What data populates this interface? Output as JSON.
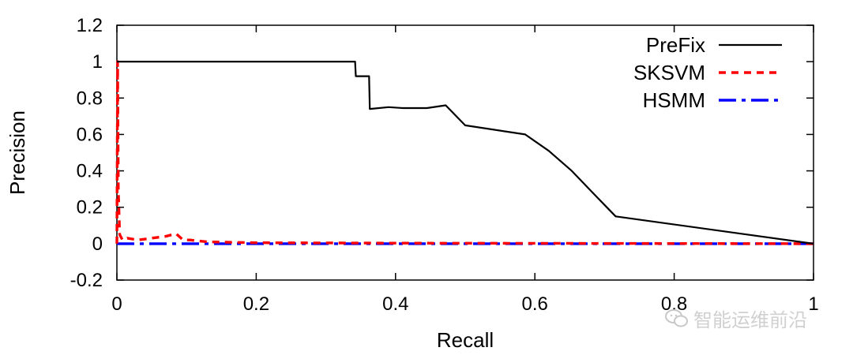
{
  "watermark": {
    "text": "智能运维前沿",
    "icon": "wechat-icon"
  },
  "chart_data": {
    "type": "line",
    "title": "",
    "xlabel": "Recall",
    "ylabel": "Precision",
    "xlim": [
      0,
      1
    ],
    "ylim": [
      -0.2,
      1.2
    ],
    "xticks": [
      0,
      0.2,
      0.4,
      0.6,
      0.8,
      1
    ],
    "xtick_labels": [
      "0",
      "0.2",
      "0.4",
      "0.6",
      "0.8",
      "1"
    ],
    "yticks": [
      -0.2,
      0,
      0.2,
      0.4,
      0.6,
      0.8,
      1,
      1.2
    ],
    "ytick_labels": [
      "-0.2",
      "0",
      "0.2",
      "0.4",
      "0.6",
      "0.8",
      "1",
      "1.2"
    ],
    "grid": false,
    "legend": "top-right",
    "series": [
      {
        "name": "PreFix",
        "color": "#000000",
        "style": "solid",
        "points": [
          [
            0,
            1
          ],
          [
            0.342,
            1
          ],
          [
            0.343,
            0.92
          ],
          [
            0.362,
            0.92
          ],
          [
            0.363,
            0.74
          ],
          [
            0.39,
            0.75
          ],
          [
            0.41,
            0.745
          ],
          [
            0.445,
            0.745
          ],
          [
            0.472,
            0.76
          ],
          [
            0.5,
            0.65
          ],
          [
            0.586,
            0.6
          ],
          [
            0.62,
            0.51
          ],
          [
            0.653,
            0.4
          ],
          [
            0.683,
            0.28
          ],
          [
            0.716,
            0.15
          ],
          [
            1,
            0
          ]
        ]
      },
      {
        "name": "SKSVM",
        "color": "#ff0000",
        "style": "dashed",
        "points": [
          [
            0,
            0
          ],
          [
            0.001,
            1
          ],
          [
            0.002,
            0.3
          ],
          [
            0.004,
            0.05
          ],
          [
            0.008,
            0.02
          ],
          [
            0.015,
            0.03
          ],
          [
            0.03,
            0.02
          ],
          [
            0.05,
            0.03
          ],
          [
            0.07,
            0.04
          ],
          [
            0.085,
            0.055
          ],
          [
            0.095,
            0.02
          ],
          [
            0.105,
            0.02
          ],
          [
            0.13,
            0.01
          ],
          [
            0.2,
            0.005
          ],
          [
            0.4,
            0.003
          ],
          [
            1,
            0
          ]
        ]
      },
      {
        "name": "HSMM",
        "color": "#0000ff",
        "style": "dashdot",
        "points": [
          [
            0,
            0
          ],
          [
            1,
            0
          ]
        ]
      }
    ]
  }
}
